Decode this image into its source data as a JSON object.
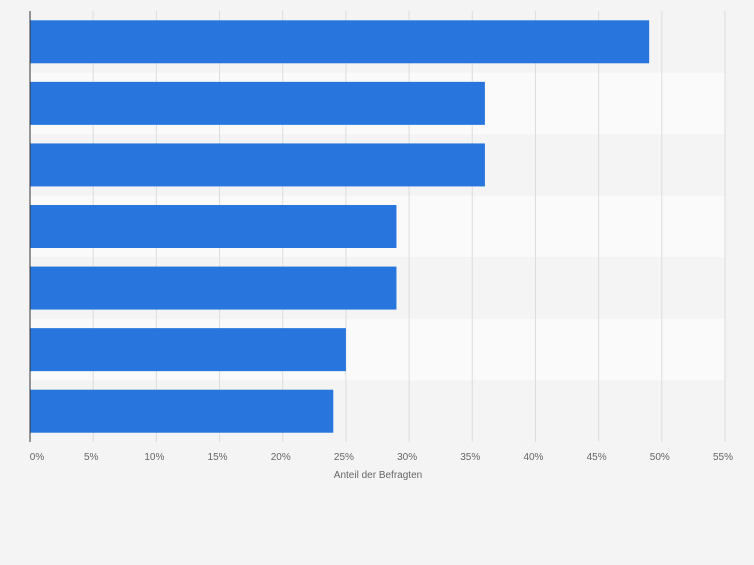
{
  "chart_data": {
    "type": "bar",
    "orientation": "horizontal",
    "categories": [
      "",
      "",
      "",
      "",
      "",
      "",
      ""
    ],
    "values": [
      49,
      36,
      36,
      29,
      29,
      25,
      24
    ],
    "xlabel": "Anteil der Befragten",
    "ylabel": "",
    "xlim": [
      0,
      55
    ],
    "xticks": [
      0,
      5,
      10,
      15,
      20,
      25,
      30,
      35,
      40,
      45,
      50,
      55
    ],
    "tick_labels": [
      "0%",
      "5%",
      "10%",
      "15%",
      "20%",
      "25%",
      "30%",
      "35%",
      "40%",
      "45%",
      "50%",
      "55%"
    ],
    "grid": true,
    "legend": "none",
    "colors": {
      "bar": "#2876dd",
      "band_light": "#fafafa",
      "band_dark": "#f4f4f4",
      "grid": "#dddddd",
      "axis": "#333333",
      "text": "#666666"
    }
  }
}
